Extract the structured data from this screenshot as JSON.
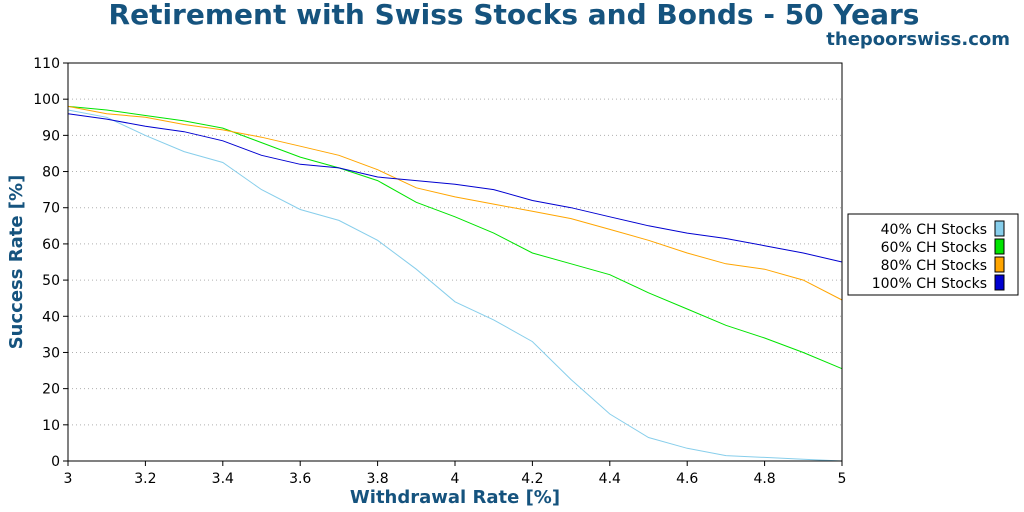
{
  "header": {
    "title": "Retirement with Swiss Stocks and Bonds - 50 Years",
    "site": "thepoorswiss.com",
    "title_color": "#15537e"
  },
  "chart_data": {
    "type": "line",
    "title": "Retirement with Swiss Stocks and Bonds - 50 Years",
    "xlabel": "Withdrawal Rate [%]",
    "ylabel": "Success Rate [%]",
    "xlim": [
      3,
      5
    ],
    "ylim": [
      0,
      110
    ],
    "x_ticks": [
      "3",
      "3.2",
      "3.4",
      "3.6",
      "3.8",
      "4",
      "4.2",
      "4.4",
      "4.6",
      "4.8",
      "5"
    ],
    "y_ticks": [
      "0",
      "10",
      "20",
      "30",
      "40",
      "50",
      "60",
      "70",
      "80",
      "90",
      "100",
      "110"
    ],
    "grid": "horizontal dotted",
    "legend_position": "right",
    "x": [
      3.0,
      3.1,
      3.2,
      3.3,
      3.4,
      3.5,
      3.6,
      3.7,
      3.8,
      3.9,
      4.0,
      4.1,
      4.2,
      4.3,
      4.4,
      4.5,
      4.6,
      4.7,
      4.8,
      4.9,
      5.0
    ],
    "series": [
      {
        "name": "40% CH Stocks",
        "color": "#87ceeb",
        "values": [
          97,
          95,
          90,
          85.5,
          82.5,
          75,
          69.5,
          66.5,
          61,
          53,
          44,
          39,
          33,
          22.5,
          13,
          6.5,
          3.5,
          1.5,
          1,
          0.5,
          0
        ]
      },
      {
        "name": "60% CH Stocks",
        "color": "#00e400",
        "values": [
          98,
          97,
          95.5,
          94,
          92,
          88,
          84,
          81,
          77.5,
          71.5,
          67.5,
          63,
          57.5,
          54.5,
          51.5,
          46.5,
          42,
          37.5,
          34,
          30,
          25.5
        ]
      },
      {
        "name": "80% CH Stocks",
        "color": "#ffa500",
        "values": [
          98,
          96,
          95,
          93,
          91.5,
          89.5,
          87,
          84.5,
          80.5,
          75.5,
          73,
          71,
          69,
          67,
          64,
          61,
          57.5,
          54.5,
          53,
          50,
          44.5
        ]
      },
      {
        "name": "100% CH Stocks",
        "color": "#0000d0",
        "values": [
          96,
          94.5,
          92.5,
          91,
          88.5,
          84.5,
          82,
          81,
          78.5,
          77.5,
          76.5,
          75,
          72,
          70,
          67.5,
          65,
          63,
          61.5,
          59.5,
          57.5,
          55
        ]
      }
    ]
  }
}
